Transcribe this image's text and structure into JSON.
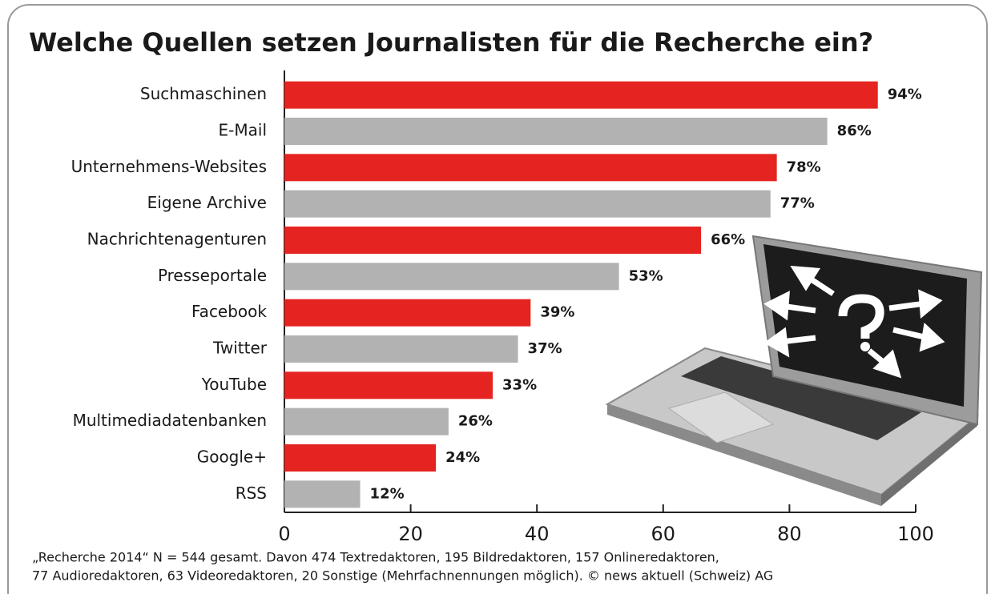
{
  "chart_data": {
    "type": "bar",
    "orientation": "horizontal",
    "title": "Welche Quellen setzen Journalisten für die Recherche ein?",
    "categories": [
      "Suchmaschinen",
      "E-Mail",
      "Unternehmens-Websites",
      "Eigene Archive",
      "Nachrichtenagenturen",
      "Presseportale",
      "Facebook",
      "Twitter",
      "YouTube",
      "Multimediadatenbanken",
      "Google+",
      "RSS"
    ],
    "values": [
      94,
      86,
      78,
      77,
      66,
      53,
      39,
      37,
      33,
      26,
      24,
      12
    ],
    "value_labels": [
      "94%",
      "86%",
      "78%",
      "77%",
      "66%",
      "53%",
      "39%",
      "37%",
      "33%",
      "26%",
      "24%",
      "12%"
    ],
    "colors": [
      "#e52421",
      "#b2b2b2",
      "#e52421",
      "#b2b2b2",
      "#e52421",
      "#b2b2b2",
      "#e52421",
      "#b2b2b2",
      "#e52421",
      "#b2b2b2",
      "#e52421",
      "#b2b2b2"
    ],
    "xlim": [
      0,
      100
    ],
    "xticks": [
      0,
      20,
      40,
      60,
      80,
      100
    ],
    "grid": false,
    "notes": [
      "„Recherche 2014“ N = 544 gesamt. Davon 474 Textredaktoren, 195 Bildredaktoren, 157 Onlineredaktoren,",
      "77 Audioredaktoren, 63 Videoredaktoren, 20 Sonstige (Mehrfachnennungen möglich). © news aktuell (Schweiz) AG"
    ]
  }
}
